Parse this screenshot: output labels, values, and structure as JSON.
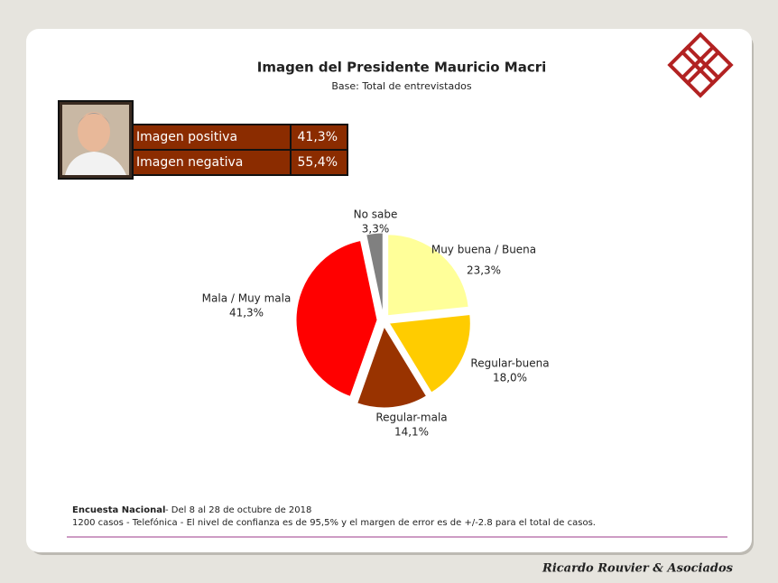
{
  "header": {
    "title": "Imagen del Presidente Mauricio Macri",
    "subtitle": "Base: Total de entrevistados"
  },
  "summary": {
    "rows": [
      [
        "Imagen positiva",
        "41,3%"
      ],
      [
        "Imagen negativa",
        "55,4%"
      ]
    ]
  },
  "chart_data": {
    "type": "pie",
    "categories": [
      "Muy buena / Buena",
      "Regular-buena",
      "Regular-mala",
      "Mala / Muy mala",
      "No sabe"
    ],
    "values": [
      23.3,
      18.0,
      14.1,
      41.3,
      3.3
    ],
    "value_labels": [
      "23,3%",
      "18,0%",
      "14,1%",
      "41,3%",
      "3,3%"
    ],
    "colors": [
      "#ffff99",
      "#ffcc00",
      "#993300",
      "#ff0000",
      "#808080"
    ]
  },
  "footer": {
    "survey": "Encuesta Nacional",
    "dates": " - Del 8 al 28 de octubre de 2018",
    "method": "1200 casos - Telefónica  - El nivel de confianza es de 95,5% y el margen de error es de +/-2.8 para el total de casos.",
    "company": "Ricardo Rouvier & Asociados"
  }
}
